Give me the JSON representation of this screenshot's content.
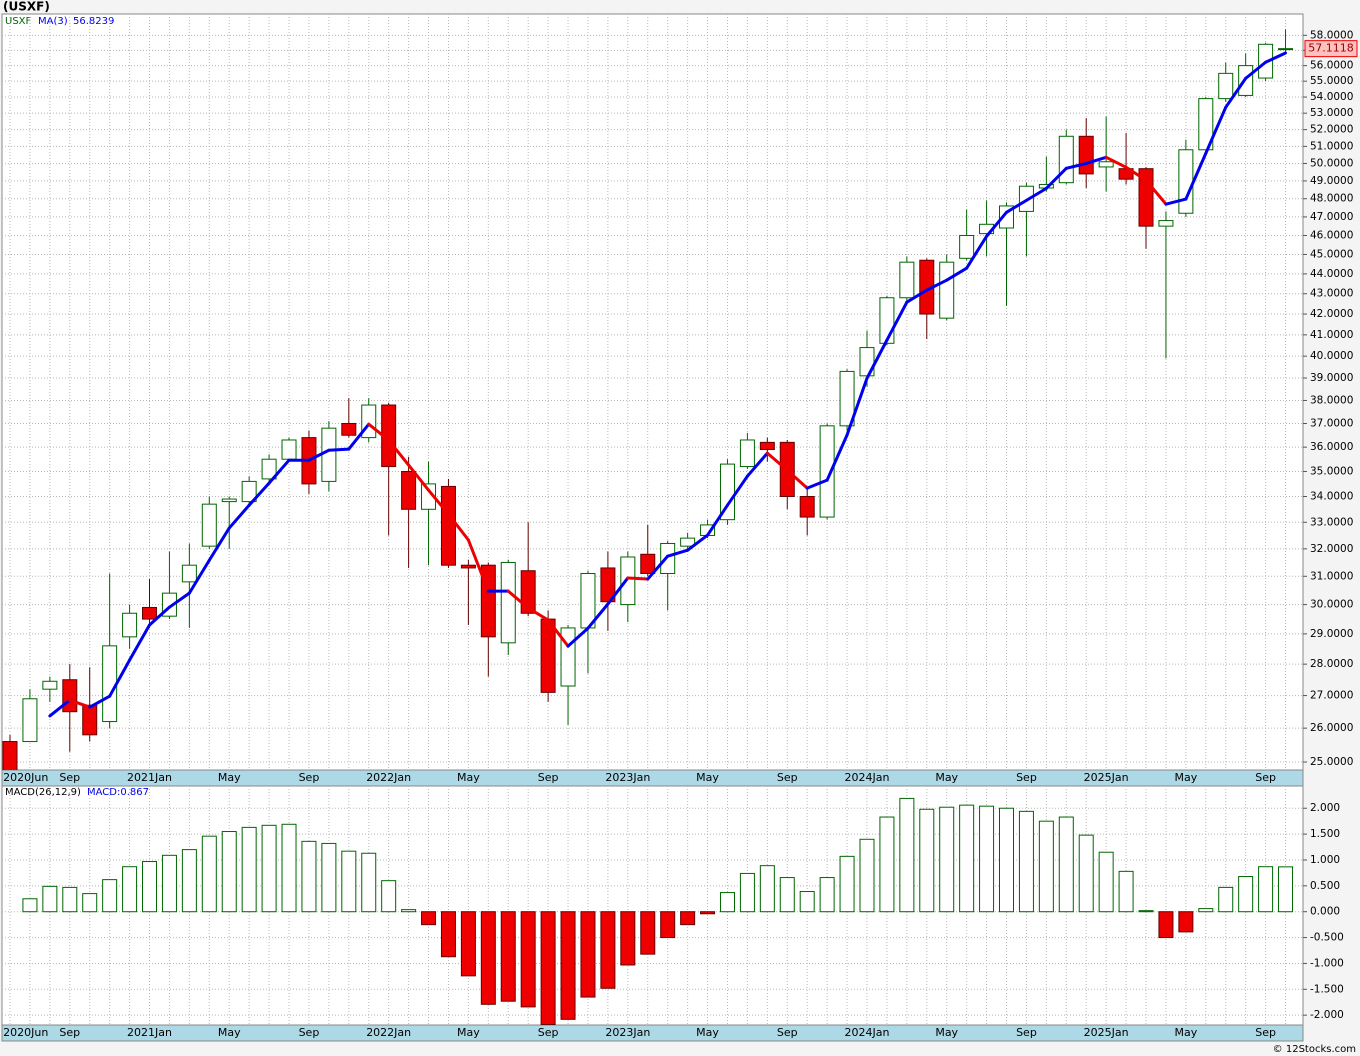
{
  "chart_data": [
    {
      "type": "candlestick",
      "title": "(USXF)",
      "symbol": "USXF",
      "categories": [
        "2020Jun",
        null,
        null,
        "Sep",
        null,
        null,
        null,
        "2021Jan",
        null,
        null,
        null,
        "May",
        null,
        null,
        null,
        "Sep",
        null,
        null,
        null,
        "2022Jan",
        null,
        null,
        null,
        "May",
        null,
        null,
        null,
        "Sep",
        null,
        null,
        null,
        "2023Jan",
        null,
        null,
        null,
        "May",
        null,
        null,
        null,
        "Sep",
        null,
        null,
        null,
        "2024Jan",
        null,
        null,
        null,
        "May",
        null,
        null,
        null,
        "Sep",
        null,
        null,
        null,
        "2025Jan",
        null,
        null,
        null,
        "May",
        null,
        null,
        null,
        "Sep",
        null
      ],
      "open": [
        25.6,
        25.6,
        27.2,
        27.5,
        26.7,
        26.2,
        28.9,
        29.9,
        29.6,
        30.8,
        32.1,
        33.8,
        33.8,
        34.7,
        35.5,
        36.4,
        34.6,
        37.0,
        36.4,
        37.8,
        35.0,
        33.5,
        34.4,
        31.4,
        31.4,
        28.7,
        31.2,
        29.5,
        27.3,
        29.2,
        31.3,
        30.0,
        31.8,
        31.1,
        32.1,
        32.5,
        33.1,
        35.2,
        36.2,
        36.2,
        34.0,
        33.2,
        36.9,
        39.1,
        40.6,
        42.8,
        44.7,
        41.8,
        44.8,
        46.1,
        46.4,
        47.3,
        48.6,
        48.9,
        51.6,
        49.8,
        49.7,
        49.7,
        46.5,
        47.2,
        50.8,
        53.9,
        54.1,
        55.2,
        57.05
      ],
      "high": [
        25.8,
        27.2,
        27.6,
        28.0,
        27.9,
        31.1,
        30.0,
        30.9,
        31.9,
        32.2,
        34.0,
        34.0,
        34.8,
        35.7,
        36.4,
        36.7,
        37.1,
        38.1,
        38.1,
        37.9,
        35.6,
        35.4,
        34.7,
        31.6,
        31.5,
        31.6,
        33.0,
        29.8,
        29.3,
        31.2,
        31.9,
        31.9,
        32.9,
        32.3,
        32.6,
        33.1,
        35.5,
        36.6,
        36.4,
        36.3,
        34.3,
        37.0,
        39.4,
        41.2,
        42.9,
        44.9,
        44.8,
        45.0,
        47.4,
        47.9,
        47.8,
        48.9,
        50.4,
        52.0,
        52.7,
        52.8,
        51.8,
        49.8,
        47.3,
        51.4,
        54.0,
        56.2,
        56.8,
        57.5,
        58.4
      ],
      "low": [
        24.5,
        25.6,
        26.8,
        25.3,
        25.6,
        26.0,
        28.5,
        29.2,
        29.5,
        29.2,
        32.0,
        32.0,
        33.6,
        34.6,
        35.4,
        34.1,
        34.2,
        36.4,
        36.2,
        32.5,
        31.3,
        31.4,
        31.3,
        29.3,
        27.6,
        28.3,
        29.6,
        26.8,
        26.1,
        27.7,
        29.1,
        29.4,
        31.0,
        29.8,
        31.9,
        32.4,
        32.9,
        35.1,
        35.4,
        33.5,
        32.5,
        33.1,
        36.7,
        38.6,
        40.5,
        42.6,
        40.8,
        41.7,
        44.7,
        44.9,
        42.4,
        44.9,
        48.4,
        48.8,
        48.6,
        48.4,
        48.8,
        45.3,
        39.9,
        47.0,
        50.6,
        53.7,
        54.0,
        55.0,
        56.9
      ],
      "close": [
        24.6,
        26.9,
        27.45,
        26.5,
        25.8,
        28.6,
        29.7,
        29.5,
        30.4,
        31.4,
        33.7,
        33.9,
        34.6,
        35.5,
        36.3,
        34.5,
        36.8,
        36.5,
        37.8,
        35.2,
        33.5,
        34.5,
        31.4,
        31.3,
        28.9,
        31.5,
        29.7,
        27.1,
        29.2,
        31.1,
        30.1,
        31.7,
        31.1,
        32.2,
        32.4,
        32.9,
        35.3,
        36.3,
        35.9,
        34.0,
        33.2,
        36.9,
        39.3,
        40.4,
        42.8,
        44.6,
        42.0,
        44.6,
        46.0,
        46.6,
        47.6,
        48.7,
        48.8,
        51.6,
        49.4,
        50.1,
        49.1,
        46.5,
        46.8,
        50.8,
        53.9,
        55.5,
        56.0,
        57.4,
        57.1118
      ],
      "series": [
        {
          "name": "MA(3)",
          "color": "#0000ee",
          "falling_color": "#ee0000",
          "values": [
            null,
            null,
            26.37,
            26.86,
            26.64,
            26.98,
            28.13,
            29.3,
            29.91,
            30.4,
            31.58,
            32.78,
            33.66,
            34.53,
            35.46,
            35.46,
            35.87,
            35.92,
            36.97,
            36.29,
            35.26,
            34.25,
            33.31,
            32.33,
            30.47,
            30.47,
            29.88,
            29.47,
            28.59,
            29.19,
            30.02,
            30.94,
            30.9,
            31.73,
            31.95,
            32.51,
            33.66,
            34.81,
            35.75,
            35.05,
            34.33,
            34.65,
            36.51,
            38.99,
            40.75,
            42.58,
            43.18,
            43.68,
            44.29,
            45.96,
            47.25,
            47.91,
            48.58,
            49.72,
            50.0,
            50.36,
            49.78,
            49.04,
            47.7,
            47.98,
            50.59,
            53.36,
            55.18,
            56.22,
            56.8239
          ]
        }
      ],
      "up_color": "#ffffff",
      "up_edge": "#006600",
      "down_color": "#ee0000",
      "down_edge": "#660000",
      "ylim": [
        24.77,
        59.45
      ],
      "log_scale": true,
      "grid": true,
      "yticks": [
        {
          "value": 25,
          "label": "25.0000"
        },
        {
          "value": 26,
          "label": "26.0000"
        },
        {
          "value": 27,
          "label": "27.0000"
        },
        {
          "value": 28,
          "label": "28.0000"
        },
        {
          "value": 29,
          "label": "29.0000"
        },
        {
          "value": 30,
          "label": "30.0000"
        },
        {
          "value": 31,
          "label": "31.0000"
        },
        {
          "value": 32,
          "label": "32.0000"
        },
        {
          "value": 33,
          "label": "33.0000"
        },
        {
          "value": 34,
          "label": "34.0000"
        },
        {
          "value": 35,
          "label": "35.0000"
        },
        {
          "value": 36,
          "label": "36.0000"
        },
        {
          "value": 37,
          "label": "37.0000"
        },
        {
          "value": 38,
          "label": "38.0000"
        },
        {
          "value": 39,
          "label": "39.0000"
        },
        {
          "value": 40,
          "label": "40.0000"
        },
        {
          "value": 41,
          "label": "41.0000"
        },
        {
          "value": 42,
          "label": "42.0000"
        },
        {
          "value": 43,
          "label": "43.0000"
        },
        {
          "value": 44,
          "label": "44.0000"
        },
        {
          "value": 45,
          "label": "45.0000"
        },
        {
          "value": 46,
          "label": "46.0000"
        },
        {
          "value": 47,
          "label": "47.0000"
        },
        {
          "value": 48,
          "label": "48.0000"
        },
        {
          "value": 49,
          "label": "49.0000"
        },
        {
          "value": 50,
          "label": "50.0000"
        },
        {
          "value": 51,
          "label": "51.0000"
        },
        {
          "value": 52,
          "label": "52.0000"
        },
        {
          "value": 53,
          "label": "53.0000"
        },
        {
          "value": 54,
          "label": "54.0000"
        },
        {
          "value": 55,
          "label": "55.0000"
        },
        {
          "value": 56,
          "label": "56.0000"
        },
        {
          "value": 57,
          "label": "57.0000"
        },
        {
          "value": 58,
          "label": "58.0000"
        }
      ]
    },
    {
      "type": "bar",
      "title": "MACD(26,12,9)",
      "legend": "MACD:0.867",
      "categories": [
        "2020Jun",
        null,
        null,
        "Sep",
        null,
        null,
        null,
        "2021Jan",
        null,
        null,
        null,
        "May",
        null,
        null,
        null,
        "Sep",
        null,
        null,
        null,
        "2022Jan",
        null,
        null,
        null,
        "May",
        null,
        null,
        null,
        "Sep",
        null,
        null,
        null,
        "2023Jan",
        null,
        null,
        null,
        "May",
        null,
        null,
        null,
        "Sep",
        null,
        null,
        null,
        "2024Jan",
        null,
        null,
        null,
        "May",
        null,
        null,
        null,
        "Sep",
        null,
        null,
        null,
        "2025Jan",
        null,
        null,
        null,
        "May",
        null,
        null,
        null,
        "Sep",
        null
      ],
      "values": [
        null,
        0.25,
        0.49,
        0.47,
        0.35,
        0.62,
        0.87,
        0.97,
        1.09,
        1.2,
        1.46,
        1.55,
        1.63,
        1.67,
        1.69,
        1.36,
        1.32,
        1.17,
        1.13,
        0.6,
        0.04,
        -0.25,
        -0.87,
        -1.24,
        -1.79,
        -1.73,
        -1.84,
        -2.18,
        -2.08,
        -1.65,
        -1.48,
        -1.03,
        -0.82,
        -0.5,
        -0.25,
        -0.04,
        0.37,
        0.74,
        0.89,
        0.66,
        0.39,
        0.66,
        1.07,
        1.4,
        1.83,
        2.19,
        1.98,
        2.02,
        2.06,
        2.04,
        2.0,
        1.94,
        1.75,
        1.83,
        1.48,
        1.15,
        0.78,
        0.02,
        -0.5,
        -0.39,
        0.06,
        0.47,
        0.68,
        0.87,
        0.867
      ],
      "up_color": "#ffffff",
      "up_edge": "#006600",
      "down_color": "#ee0000",
      "down_edge": "#660000",
      "ylim": [
        -2.19,
        2.43
      ],
      "grid": true,
      "yticks": [
        {
          "value": -2,
          "label": "-2.000"
        },
        {
          "value": -1.5,
          "label": "-1.500"
        },
        {
          "value": -1,
          "label": "-1.000"
        },
        {
          "value": -0.5,
          "label": "-0.500"
        },
        {
          "value": 0,
          "label": "0.000"
        },
        {
          "value": 0.5,
          "label": "0.500"
        },
        {
          "value": 1,
          "label": "1.000"
        },
        {
          "value": 1.5,
          "label": "1.500"
        },
        {
          "value": 2,
          "label": "2.000"
        }
      ]
    }
  ],
  "footer": "© 12Stocks.com"
}
